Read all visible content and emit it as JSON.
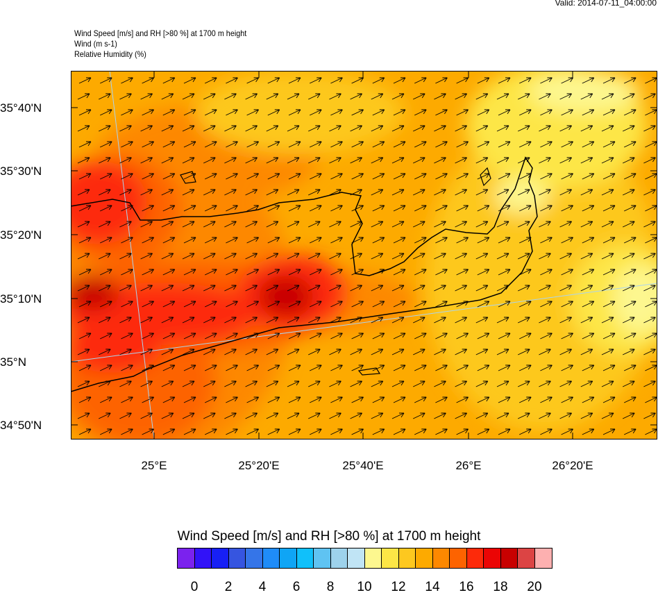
{
  "header": {
    "valid": "Valid: 2014-07-11_04:00:00",
    "lines": [
      "Wind Speed [m/s] and RH [>80 %] at 1700 m height",
      "Wind   (m s-1)",
      "Relative Humidity   (%)"
    ]
  },
  "map": {
    "lat_labels": [
      "35°40'N",
      "35°30'N",
      "35°20'N",
      "35°10'N",
      "35°N",
      "34°50'N"
    ],
    "lon_labels": [
      "25°E",
      "25°20'E",
      "25°40'E",
      "26°E",
      "26°20'E"
    ]
  },
  "colorbar": {
    "title": "Wind Speed [m/s] and RH [>80 %] at 1700 m height",
    "colors": [
      "#7b22ee",
      "#3212f8",
      "#1720f5",
      "#3655e0",
      "#3575e8",
      "#1f8cf8",
      "#0fa5f5",
      "#10c0fa",
      "#5fc3f2",
      "#9dd2ec",
      "#c0e4f5",
      "#fdf78f",
      "#fde646",
      "#fdc81f",
      "#fdaa00",
      "#fd8800",
      "#fd6300",
      "#fd2a0a",
      "#eb0505",
      "#c80000",
      "#dc4444",
      "#fdb0b0"
    ],
    "labels": [
      "0",
      "2",
      "4",
      "6",
      "8",
      "10",
      "12",
      "14",
      "16",
      "18",
      "20"
    ]
  }
}
